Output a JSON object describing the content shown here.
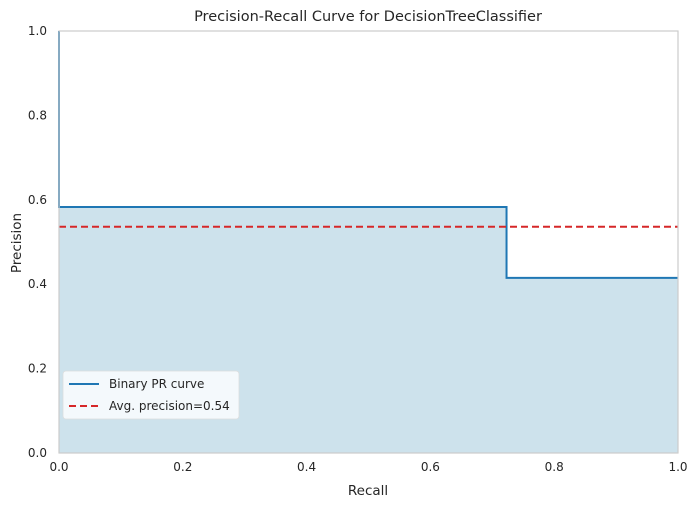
{
  "chart_data": {
    "type": "line",
    "title": "Precision-Recall Curve for DecisionTreeClassifier",
    "xlabel": "Recall",
    "ylabel": "Precision",
    "xlim": [
      0,
      1
    ],
    "ylim": [
      0,
      1
    ],
    "xticks": [
      "0.0",
      "0.2",
      "0.4",
      "0.6",
      "0.8",
      "1.0"
    ],
    "yticks": [
      "0.0",
      "0.2",
      "0.4",
      "0.6",
      "0.8",
      "1.0"
    ],
    "grid": false,
    "legend_position": "lower-left",
    "series": [
      {
        "name": "Binary PR curve",
        "style": "step",
        "color": "#1f77b4",
        "fill_color": "#cde2ec",
        "x": [
          0.0,
          0.0,
          0.723,
          0.723,
          1.0
        ],
        "y": [
          1.0,
          0.583,
          0.583,
          0.415,
          0.415
        ]
      },
      {
        "name": "Avg. precision=0.54",
        "style": "dashed",
        "color": "#d62728",
        "x": [
          0.0,
          1.0
        ],
        "y": [
          0.536,
          0.536
        ]
      }
    ]
  }
}
